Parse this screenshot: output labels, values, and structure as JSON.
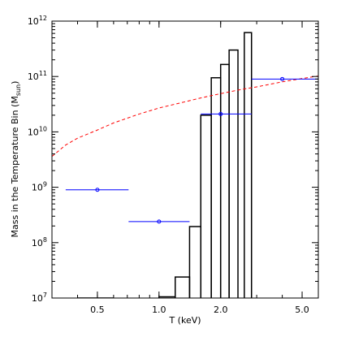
{
  "chart_data": {
    "type": "line",
    "xlabel": "T (keV)",
    "ylabel_main": "Mass in the Temperature Bin (M",
    "ylabel_sub": "sun",
    "ylabel_tail": ")",
    "x_scale": "log",
    "y_scale": "log",
    "xlim": [
      0.3,
      6.0
    ],
    "ylim": [
      10000000.0,
      1000000000000.0
    ],
    "grid": false,
    "x_ticks": [
      {
        "value": 0.5,
        "label": "0.5"
      },
      {
        "value": 1.0,
        "label": "1.0"
      },
      {
        "value": 2.0,
        "label": "2.0"
      },
      {
        "value": 5.0,
        "label": "5.0"
      }
    ],
    "y_ticks": [
      {
        "value": 10000000.0,
        "base": "10",
        "exp": "7"
      },
      {
        "value": 100000000.0,
        "base": "10",
        "exp": "8"
      },
      {
        "value": 1000000000.0,
        "base": "10",
        "exp": "9"
      },
      {
        "value": 10000000000.0,
        "base": "10",
        "exp": "10"
      },
      {
        "value": 100000000000.0,
        "base": "10",
        "exp": "11"
      },
      {
        "value": 1000000000000.0,
        "base": "10",
        "exp": "12"
      }
    ],
    "series": [
      {
        "style": "step",
        "color": "#000000",
        "bins": [
          {
            "x0": 0.4,
            "x1": 0.6,
            "y": 10000000.0
          },
          {
            "x0": 1.0,
            "x1": 1.2,
            "y": 10500000.0
          },
          {
            "x0": 1.2,
            "x1": 1.41,
            "y": 24000000.0
          },
          {
            "x0": 1.41,
            "x1": 1.6,
            "y": 195000000.0
          },
          {
            "x0": 1.6,
            "x1": 1.8,
            "y": 20000000000.0
          },
          {
            "x0": 1.8,
            "x1": 2.0,
            "y": 95000000000.0
          },
          {
            "x0": 2.0,
            "x1": 2.2,
            "y": 165000000000.0
          },
          {
            "x0": 2.2,
            "x1": 2.43,
            "y": 300000000000.0
          },
          {
            "x0": 2.61,
            "x1": 2.83,
            "y": 620000000000.0
          }
        ]
      },
      {
        "style": "dashed",
        "color": "#ff0000",
        "x": [
          0.3,
          0.35,
          0.4,
          0.5,
          0.6,
          0.8,
          1.0,
          1.3,
          1.6,
          2.0,
          2.5,
          3.0,
          4.0,
          5.0,
          6.0
        ],
        "y": [
          3600000000.0,
          5800000000.0,
          7700000000.0,
          10800000000.0,
          14500000000.0,
          21000000000.0,
          27000000000.0,
          34000000000.0,
          41000000000.0,
          49000000000.0,
          58000000000.0,
          65000000000.0,
          80000000000.0,
          92000000000.0,
          102000000000.0
        ]
      },
      {
        "style": "points_with_xerr",
        "color": "#0000ff",
        "points": [
          {
            "x": 0.5,
            "y": 900000000.0,
            "xlo": 0.35,
            "xhi": 0.71
          },
          {
            "x": 1.0,
            "y": 240000000.0,
            "xlo": 0.71,
            "xhi": 1.41
          },
          {
            "x": 2.0,
            "y": 21000000000.0,
            "xlo": 1.6,
            "xhi": 2.83
          },
          {
            "x": 4.0,
            "y": 90000000000.0,
            "xlo": 2.83,
            "xhi": 6.0
          }
        ]
      }
    ]
  }
}
